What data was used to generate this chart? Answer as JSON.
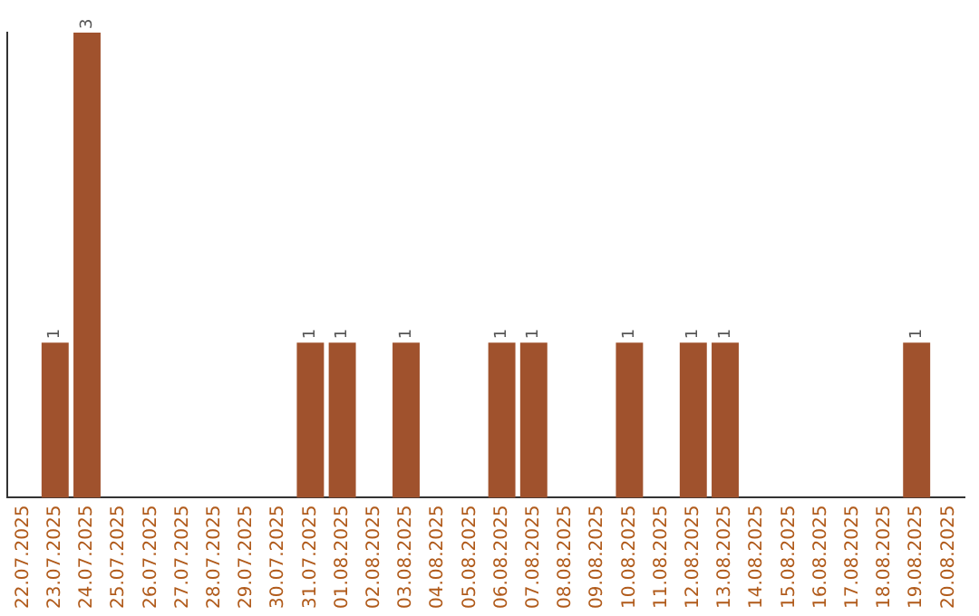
{
  "chart_data": {
    "type": "bar",
    "categories": [
      "22.07.2025",
      "23.07.2025",
      "24.07.2025",
      "25.07.2025",
      "26.07.2025",
      "27.07.2025",
      "28.07.2025",
      "29.07.2025",
      "30.07.2025",
      "31.07.2025",
      "01.08.2025",
      "02.08.2025",
      "03.08.2025",
      "04.08.2025",
      "05.08.2025",
      "06.08.2025",
      "07.08.2025",
      "08.08.2025",
      "09.08.2025",
      "10.08.2025",
      "11.08.2025",
      "12.08.2025",
      "13.08.2025",
      "14.08.2025",
      "15.08.2025",
      "16.08.2025",
      "17.08.2025",
      "18.08.2025",
      "19.08.2025",
      "20.08.2025"
    ],
    "values": [
      0,
      1,
      3,
      0,
      0,
      0,
      0,
      0,
      0,
      1,
      1,
      0,
      1,
      0,
      0,
      1,
      1,
      0,
      0,
      1,
      0,
      1,
      1,
      0,
      0,
      0,
      0,
      0,
      1,
      0
    ],
    "value_labels": [
      null,
      "1",
      "3",
      null,
      null,
      null,
      null,
      null,
      null,
      "1",
      "1",
      null,
      "1",
      null,
      null,
      "1",
      "1",
      null,
      null,
      "1",
      null,
      "1",
      "1",
      null,
      null,
      null,
      null,
      null,
      "1",
      null
    ],
    "color": "#a0522d",
    "grid": false,
    "legend": false,
    "tick_labels": "x"
  }
}
